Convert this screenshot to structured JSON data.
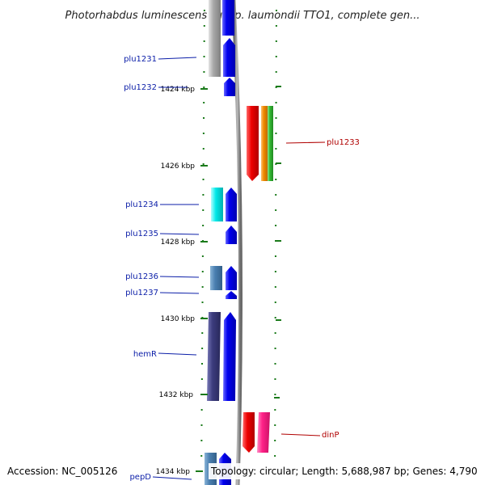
{
  "title": "Photorhabdus luminescens subsp. laumondii TTO1, complete gen...",
  "footer": {
    "accession": "Accession: NC_005126",
    "topology": "Topology: circular; Length: 5,688,987 bp; Genes: 4,790"
  },
  "tick_labels": [
    "1424 kbp",
    "1426 kbp",
    "1428 kbp",
    "1430 kbp",
    "1432 kbp",
    "1434 kbp"
  ],
  "gene_labels": {
    "left": [
      "plu1231",
      "plu1232",
      "plu1234",
      "plu1235",
      "plu1236",
      "plu1237",
      "hemR",
      "pepD"
    ],
    "right": [
      "plu1233",
      "dinP"
    ]
  },
  "colors": {
    "label_left": "#0b1ea8",
    "label_right": "#b00000",
    "backbone": "#8c8c8c",
    "blue": "#0000ee",
    "red": "#ee0000",
    "orange": "#f08a00",
    "green": "#33bb33",
    "cyan": "#00e8e8",
    "steel": "#4a7fb0",
    "navy": "#3c3c7e",
    "pink": "#ff2288",
    "gray": "#a8a8a8",
    "tick": "#1a7a1a"
  }
}
